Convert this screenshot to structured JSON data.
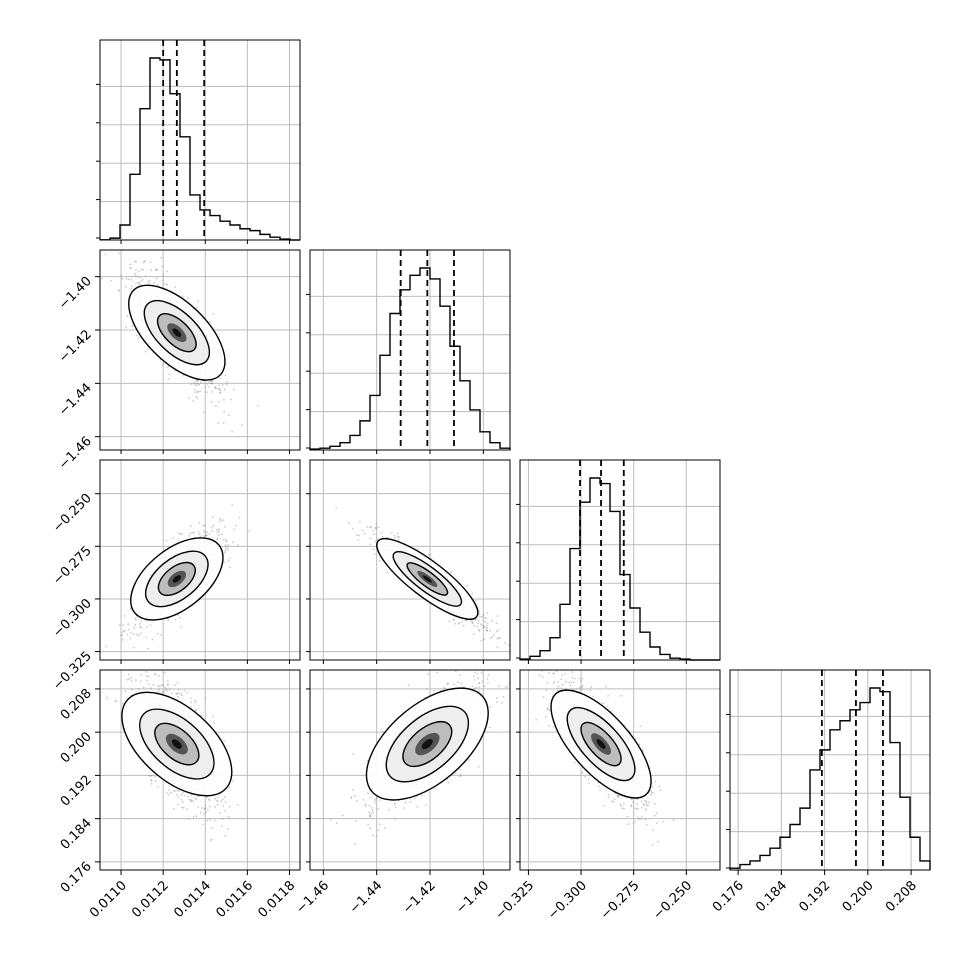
{
  "chart_data": {
    "type": "corner",
    "parameters": [
      {
        "ticks": [
          0.011,
          0.0112,
          0.0114,
          0.0116,
          0.0118
        ],
        "tick_labels": [
          "0.0110",
          "0.0112",
          "0.0114",
          "0.0116",
          "0.0118"
        ],
        "range": [
          0.0109,
          0.01185
        ],
        "quantiles": [
          0.0112,
          0.011265,
          0.011395
        ]
      },
      {
        "ticks": [
          -1.46,
          -1.44,
          -1.42,
          -1.4
        ],
        "tick_labels": [
          "−1.46",
          "−1.44",
          "−1.42",
          "−1.40"
        ],
        "range": [
          -1.465,
          -1.39
        ],
        "quantiles": [
          -1.431,
          -1.421,
          -1.411
        ]
      },
      {
        "ticks": [
          -0.325,
          -0.3,
          -0.275,
          -0.25
        ],
        "tick_labels": [
          "−0.325",
          "−0.300",
          "−0.275",
          "−0.250"
        ],
        "range": [
          -0.329,
          -0.234
        ],
        "quantiles": [
          -0.3005,
          -0.2905,
          -0.2797
        ]
      },
      {
        "ticks": [
          0.176,
          0.184,
          0.192,
          0.2,
          0.208
        ],
        "tick_labels": [
          "0.176",
          "0.184",
          "0.192",
          "0.200",
          "0.208"
        ],
        "range": [
          0.1745,
          0.2115
        ],
        "quantiles": [
          0.1915,
          0.1978,
          0.2028
        ]
      }
    ],
    "histograms": [
      [
        0.1,
        1,
        8,
        35,
        70,
        97,
        96,
        78,
        55,
        24,
        16,
        13,
        10,
        8,
        6,
        5,
        3,
        1.5,
        0.5,
        0
      ],
      [
        0.5,
        1,
        2,
        4,
        8,
        16,
        30,
        52,
        75,
        88,
        96,
        100,
        94,
        79,
        57,
        38,
        22,
        10,
        4,
        1
      ],
      [
        0.5,
        2,
        5,
        12,
        30,
        60,
        85,
        98,
        95,
        80,
        46,
        28,
        15,
        7,
        3,
        1,
        0.5,
        0,
        0,
        0
      ],
      [
        1,
        3,
        5,
        8,
        12,
        18,
        25,
        34,
        55,
        66,
        77,
        82,
        88,
        92,
        100,
        98,
        70,
        40,
        18,
        5
      ]
    ],
    "grid": true
  }
}
